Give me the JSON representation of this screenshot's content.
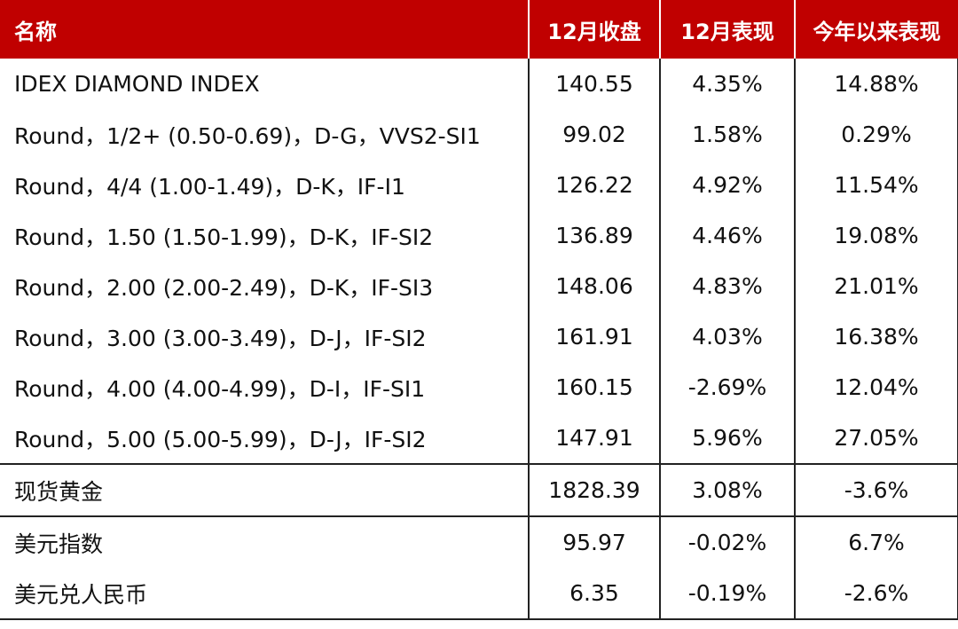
{
  "table": {
    "headers": [
      "名称",
      "12月收盘",
      "12月表现",
      "今年以来表现"
    ],
    "rows": [
      [
        "IDEX DIAMOND INDEX",
        "140.55",
        "4.35%",
        "14.88%"
      ],
      [
        "Round，1/2+ (0.50-0.69)，D-G，VVS2-SI1",
        "99.02",
        "1.58%",
        "0.29%"
      ],
      [
        "Round，4/4 (1.00-1.49)，D-K，IF-I1",
        "126.22",
        "4.92%",
        "11.54%"
      ],
      [
        "Round，1.50 (1.50-1.99)，D-K，IF-SI2",
        "136.89",
        "4.46%",
        "19.08%"
      ],
      [
        "Round，2.00 (2.00-2.49)，D-K，IF-SI3",
        "148.06",
        "4.83%",
        "21.01%"
      ],
      [
        "Round，3.00 (3.00-3.49)，D-J，IF-SI2",
        "161.91",
        "4.03%",
        "16.38%"
      ],
      [
        "Round，4.00 (4.00-4.99)，D-I，IF-SI1",
        "160.15",
        "-2.69%",
        "12.04%"
      ],
      [
        "Round，5.00 (5.00-5.99)，D-J，IF-SI2",
        "147.91",
        "5.96%",
        "27.05%"
      ],
      [
        "现货黄金",
        "1828.39",
        "3.08%",
        "-3.6%"
      ],
      [
        "美元指数",
        "95.97",
        "-0.02%",
        "6.7%"
      ],
      [
        "美元兑人民币",
        "6.35",
        "-0.19%",
        "-2.6%"
      ]
    ]
  },
  "colors": {
    "header_bg": "#c00000",
    "header_text": "#ffffff",
    "rule": "#222222"
  }
}
